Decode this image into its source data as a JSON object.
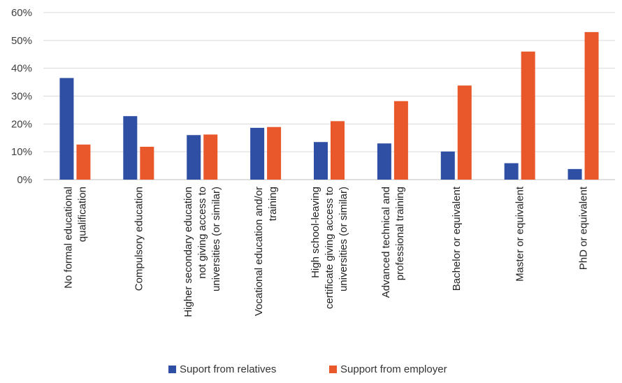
{
  "chart_data": {
    "type": "bar",
    "categories": [
      [
        "No formal educational",
        "qualification"
      ],
      [
        "Compulsory education"
      ],
      [
        "Higher secondary education",
        "not giving access to",
        "universities (or similar)"
      ],
      [
        "Vocational education and/or",
        "training"
      ],
      [
        "High school-leaving",
        "certificate giving access to",
        "universities (or similar)"
      ],
      [
        "Advanced technical and",
        "professional training"
      ],
      [
        "Bachelor or equivalent"
      ],
      [
        "Master or equivalent"
      ],
      [
        "PhD or equivalent"
      ]
    ],
    "series": [
      {
        "name": "Suport from relatives",
        "color": "#2e4fa3",
        "values": [
          36.5,
          22.8,
          16.0,
          18.6,
          13.5,
          13.0,
          10.1,
          5.9,
          3.8
        ]
      },
      {
        "name": "Support from employer",
        "color": "#e8582a",
        "values": [
          12.6,
          11.8,
          16.2,
          18.9,
          21.0,
          28.2,
          33.8,
          46.0,
          53.0
        ]
      }
    ],
    "yticks": [
      "0%",
      "10%",
      "20%",
      "30%",
      "40%",
      "50%",
      "60%"
    ],
    "ylim": [
      0,
      60
    ],
    "grid": true,
    "legend_position": "bottom"
  }
}
